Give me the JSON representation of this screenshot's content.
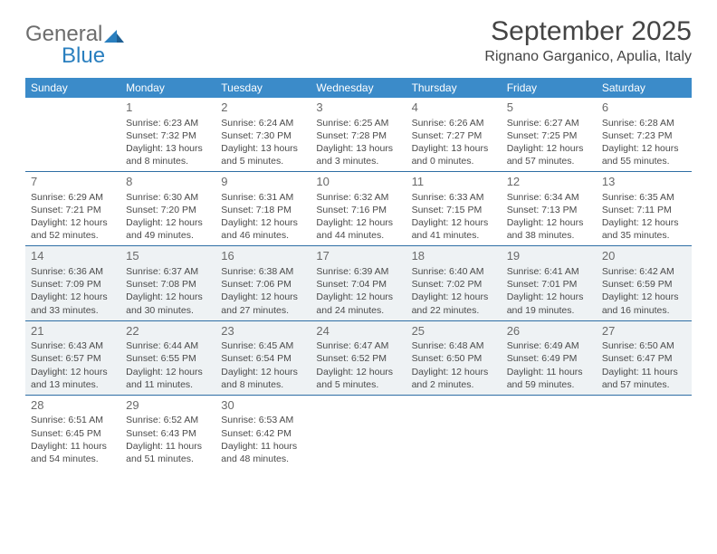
{
  "logo": {
    "general": "General",
    "blue": "Blue"
  },
  "title": "September 2025",
  "location": "Rignano Garganico, Apulia, Italy",
  "colors": {
    "header_bg": "#3b8bc9",
    "header_text": "#ffffff",
    "row_border": "#2e6ea5",
    "shaded_bg": "#eef2f4",
    "body_text": "#4a4a4a",
    "logo_general": "#6d6d6d",
    "logo_blue": "#2a7fbf"
  },
  "weekdays": [
    "Sunday",
    "Monday",
    "Tuesday",
    "Wednesday",
    "Thursday",
    "Friday",
    "Saturday"
  ],
  "weeks": [
    [
      null,
      {
        "day": "1",
        "sunrise": "Sunrise: 6:23 AM",
        "sunset": "Sunset: 7:32 PM",
        "daylight": "Daylight: 13 hours and 8 minutes."
      },
      {
        "day": "2",
        "sunrise": "Sunrise: 6:24 AM",
        "sunset": "Sunset: 7:30 PM",
        "daylight": "Daylight: 13 hours and 5 minutes."
      },
      {
        "day": "3",
        "sunrise": "Sunrise: 6:25 AM",
        "sunset": "Sunset: 7:28 PM",
        "daylight": "Daylight: 13 hours and 3 minutes."
      },
      {
        "day": "4",
        "sunrise": "Sunrise: 6:26 AM",
        "sunset": "Sunset: 7:27 PM",
        "daylight": "Daylight: 13 hours and 0 minutes."
      },
      {
        "day": "5",
        "sunrise": "Sunrise: 6:27 AM",
        "sunset": "Sunset: 7:25 PM",
        "daylight": "Daylight: 12 hours and 57 minutes."
      },
      {
        "day": "6",
        "sunrise": "Sunrise: 6:28 AM",
        "sunset": "Sunset: 7:23 PM",
        "daylight": "Daylight: 12 hours and 55 minutes."
      }
    ],
    [
      {
        "day": "7",
        "sunrise": "Sunrise: 6:29 AM",
        "sunset": "Sunset: 7:21 PM",
        "daylight": "Daylight: 12 hours and 52 minutes."
      },
      {
        "day": "8",
        "sunrise": "Sunrise: 6:30 AM",
        "sunset": "Sunset: 7:20 PM",
        "daylight": "Daylight: 12 hours and 49 minutes."
      },
      {
        "day": "9",
        "sunrise": "Sunrise: 6:31 AM",
        "sunset": "Sunset: 7:18 PM",
        "daylight": "Daylight: 12 hours and 46 minutes."
      },
      {
        "day": "10",
        "sunrise": "Sunrise: 6:32 AM",
        "sunset": "Sunset: 7:16 PM",
        "daylight": "Daylight: 12 hours and 44 minutes."
      },
      {
        "day": "11",
        "sunrise": "Sunrise: 6:33 AM",
        "sunset": "Sunset: 7:15 PM",
        "daylight": "Daylight: 12 hours and 41 minutes."
      },
      {
        "day": "12",
        "sunrise": "Sunrise: 6:34 AM",
        "sunset": "Sunset: 7:13 PM",
        "daylight": "Daylight: 12 hours and 38 minutes."
      },
      {
        "day": "13",
        "sunrise": "Sunrise: 6:35 AM",
        "sunset": "Sunset: 7:11 PM",
        "daylight": "Daylight: 12 hours and 35 minutes."
      }
    ],
    [
      {
        "day": "14",
        "sunrise": "Sunrise: 6:36 AM",
        "sunset": "Sunset: 7:09 PM",
        "daylight": "Daylight: 12 hours and 33 minutes."
      },
      {
        "day": "15",
        "sunrise": "Sunrise: 6:37 AM",
        "sunset": "Sunset: 7:08 PM",
        "daylight": "Daylight: 12 hours and 30 minutes."
      },
      {
        "day": "16",
        "sunrise": "Sunrise: 6:38 AM",
        "sunset": "Sunset: 7:06 PM",
        "daylight": "Daylight: 12 hours and 27 minutes."
      },
      {
        "day": "17",
        "sunrise": "Sunrise: 6:39 AM",
        "sunset": "Sunset: 7:04 PM",
        "daylight": "Daylight: 12 hours and 24 minutes."
      },
      {
        "day": "18",
        "sunrise": "Sunrise: 6:40 AM",
        "sunset": "Sunset: 7:02 PM",
        "daylight": "Daylight: 12 hours and 22 minutes."
      },
      {
        "day": "19",
        "sunrise": "Sunrise: 6:41 AM",
        "sunset": "Sunset: 7:01 PM",
        "daylight": "Daylight: 12 hours and 19 minutes."
      },
      {
        "day": "20",
        "sunrise": "Sunrise: 6:42 AM",
        "sunset": "Sunset: 6:59 PM",
        "daylight": "Daylight: 12 hours and 16 minutes."
      }
    ],
    [
      {
        "day": "21",
        "sunrise": "Sunrise: 6:43 AM",
        "sunset": "Sunset: 6:57 PM",
        "daylight": "Daylight: 12 hours and 13 minutes."
      },
      {
        "day": "22",
        "sunrise": "Sunrise: 6:44 AM",
        "sunset": "Sunset: 6:55 PM",
        "daylight": "Daylight: 12 hours and 11 minutes."
      },
      {
        "day": "23",
        "sunrise": "Sunrise: 6:45 AM",
        "sunset": "Sunset: 6:54 PM",
        "daylight": "Daylight: 12 hours and 8 minutes."
      },
      {
        "day": "24",
        "sunrise": "Sunrise: 6:47 AM",
        "sunset": "Sunset: 6:52 PM",
        "daylight": "Daylight: 12 hours and 5 minutes."
      },
      {
        "day": "25",
        "sunrise": "Sunrise: 6:48 AM",
        "sunset": "Sunset: 6:50 PM",
        "daylight": "Daylight: 12 hours and 2 minutes."
      },
      {
        "day": "26",
        "sunrise": "Sunrise: 6:49 AM",
        "sunset": "Sunset: 6:49 PM",
        "daylight": "Daylight: 11 hours and 59 minutes."
      },
      {
        "day": "27",
        "sunrise": "Sunrise: 6:50 AM",
        "sunset": "Sunset: 6:47 PM",
        "daylight": "Daylight: 11 hours and 57 minutes."
      }
    ],
    [
      {
        "day": "28",
        "sunrise": "Sunrise: 6:51 AM",
        "sunset": "Sunset: 6:45 PM",
        "daylight": "Daylight: 11 hours and 54 minutes."
      },
      {
        "day": "29",
        "sunrise": "Sunrise: 6:52 AM",
        "sunset": "Sunset: 6:43 PM",
        "daylight": "Daylight: 11 hours and 51 minutes."
      },
      {
        "day": "30",
        "sunrise": "Sunrise: 6:53 AM",
        "sunset": "Sunset: 6:42 PM",
        "daylight": "Daylight: 11 hours and 48 minutes."
      },
      null,
      null,
      null,
      null
    ]
  ],
  "shaded_rows": [
    2,
    3
  ]
}
